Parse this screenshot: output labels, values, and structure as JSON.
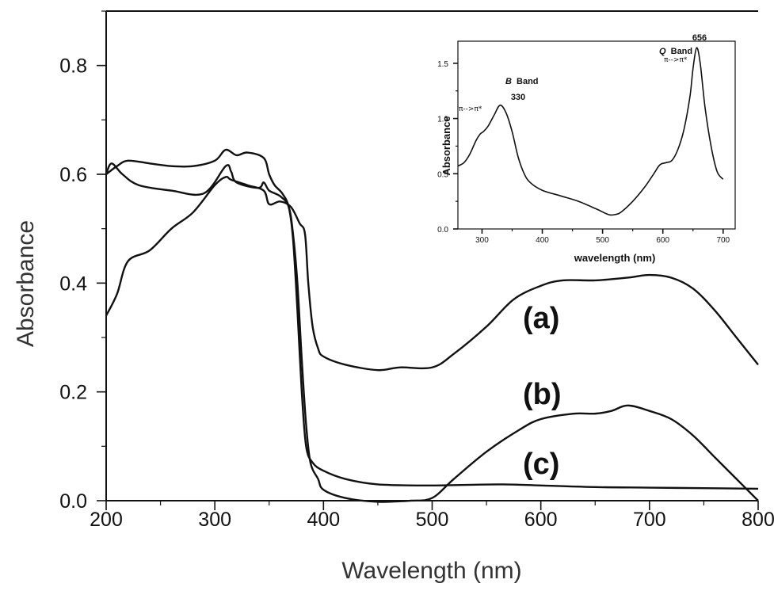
{
  "chart_data": [
    {
      "type": "line",
      "xlabel": "Wavelength (nm)",
      "ylabel": "Absorbance",
      "xlim": [
        200,
        800
      ],
      "ylim": [
        0,
        0.9
      ],
      "x_ticks": [
        200,
        300,
        400,
        500,
        600,
        700,
        800
      ],
      "x_tick_labels": [
        "200",
        "300",
        "400",
        "500",
        "600",
        "700",
        "800"
      ],
      "y_ticks": [
        0.0,
        0.2,
        0.4,
        0.6,
        0.8
      ],
      "y_tick_labels": [
        "0.0",
        "0.2",
        "0.4",
        "0.6",
        "0.8"
      ],
      "grid": false,
      "series": [
        {
          "name": "(a)",
          "x": [
            200,
            210,
            220,
            240,
            260,
            280,
            300,
            310,
            315,
            330,
            345,
            350,
            360,
            370,
            378,
            383,
            386,
            390,
            395,
            400,
            420,
            450,
            470,
            500,
            520,
            550,
            575,
            600,
            620,
            650,
            680,
            700,
            720,
            740,
            760,
            780,
            800
          ],
          "y": [
            0.34,
            0.38,
            0.44,
            0.46,
            0.5,
            0.53,
            0.58,
            0.595,
            0.59,
            0.58,
            0.57,
            0.545,
            0.55,
            0.54,
            0.51,
            0.49,
            0.4,
            0.32,
            0.28,
            0.265,
            0.25,
            0.24,
            0.245,
            0.245,
            0.27,
            0.32,
            0.37,
            0.395,
            0.405,
            0.405,
            0.41,
            0.415,
            0.41,
            0.39,
            0.35,
            0.3,
            0.25
          ]
        },
        {
          "name": "(b)",
          "x": [
            200,
            205,
            215,
            230,
            260,
            290,
            310,
            315,
            320,
            340,
            345,
            350,
            360,
            368,
            372,
            376,
            380,
            384,
            388,
            395,
            400,
            420,
            450,
            480,
            500,
            520,
            550,
            580,
            600,
            630,
            650,
            665,
            680,
            700,
            720,
            740,
            760,
            780,
            790,
            800
          ],
          "y": [
            0.6,
            0.62,
            0.6,
            0.58,
            0.57,
            0.565,
            0.615,
            0.605,
            0.585,
            0.575,
            0.585,
            0.57,
            0.56,
            0.54,
            0.49,
            0.4,
            0.26,
            0.14,
            0.07,
            0.04,
            0.02,
            0.005,
            -0.002,
            0.0,
            0.005,
            0.04,
            0.09,
            0.13,
            0.15,
            0.16,
            0.16,
            0.165,
            0.175,
            0.165,
            0.15,
            0.12,
            0.08,
            0.04,
            0.02,
            0.0
          ]
        },
        {
          "name": "(c)",
          "x": [
            200,
            210,
            220,
            240,
            260,
            280,
            300,
            310,
            320,
            330,
            345,
            350,
            355,
            362,
            368,
            372,
            376,
            380,
            384,
            390,
            400,
            420,
            450,
            500,
            560,
            600,
            650,
            700,
            750,
            800
          ],
          "y": [
            0.6,
            0.615,
            0.625,
            0.62,
            0.615,
            0.615,
            0.625,
            0.645,
            0.635,
            0.64,
            0.63,
            0.6,
            0.58,
            0.565,
            0.54,
            0.48,
            0.35,
            0.2,
            0.1,
            0.07,
            0.055,
            0.04,
            0.03,
            0.028,
            0.03,
            0.028,
            0.025,
            0.024,
            0.023,
            0.022
          ]
        }
      ]
    },
    {
      "type": "line",
      "xlabel": "wavelength (nm)",
      "ylabel": "Absorbance",
      "xlim": [
        260,
        720
      ],
      "ylim": [
        0,
        1.7
      ],
      "x_ticks": [
        300,
        400,
        500,
        600,
        700
      ],
      "x_tick_labels": [
        "300",
        "400",
        "500",
        "600",
        "700"
      ],
      "y_ticks": [
        0.0,
        0.5,
        1.0,
        1.5
      ],
      "y_tick_labels": [
        "0.0",
        "0.5",
        "1.0",
        "1.5"
      ],
      "grid": false,
      "annotations": {
        "b_band_letter": "B",
        "b_band_word": "Band",
        "b_peak": "330",
        "b_transition": "π-->π*",
        "q_band_letter": "Q",
        "q_band_word": "Band",
        "q_peak": "656",
        "q_transition": "π-->π*"
      },
      "series": [
        {
          "x": [
            260,
            270,
            280,
            290,
            297,
            302,
            310,
            320,
            330,
            340,
            350,
            360,
            370,
            380,
            400,
            430,
            460,
            490,
            510,
            520,
            530,
            550,
            570,
            585,
            595,
            605,
            615,
            625,
            635,
            645,
            650,
            656,
            662,
            670,
            680,
            690,
            700
          ],
          "y": [
            0.57,
            0.6,
            0.68,
            0.8,
            0.86,
            0.88,
            0.93,
            1.03,
            1.12,
            1.05,
            0.88,
            0.65,
            0.5,
            0.42,
            0.35,
            0.3,
            0.25,
            0.18,
            0.13,
            0.13,
            0.15,
            0.25,
            0.38,
            0.5,
            0.58,
            0.6,
            0.62,
            0.72,
            0.9,
            1.2,
            1.45,
            1.64,
            1.5,
            1.1,
            0.75,
            0.52,
            0.45
          ]
        }
      ]
    }
  ]
}
